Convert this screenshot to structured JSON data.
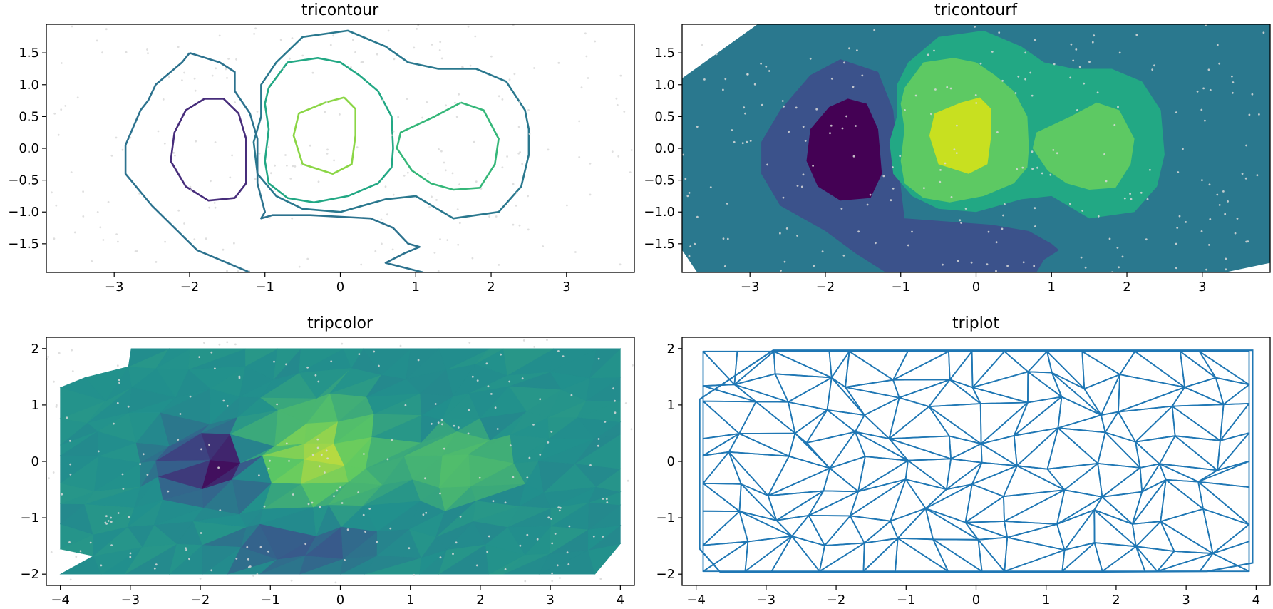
{
  "colors": {
    "mesh": "#1f77b4",
    "points": "#d9d9d9",
    "viridis": [
      "#440154",
      "#3b528b",
      "#21908d",
      "#5dc963",
      "#fde725"
    ]
  },
  "chart_data": [
    {
      "type": "tricontour",
      "title": "tricontour",
      "xlim": [
        -3.9,
        3.9
      ],
      "ylim": [
        -1.95,
        1.95
      ],
      "xticks": [
        -3,
        -2,
        -1,
        0,
        1,
        2,
        3
      ],
      "yticks": [
        -1.5,
        -1.0,
        -0.5,
        0.0,
        0.5,
        1.0,
        1.5
      ],
      "contours": [
        {
          "level_color": "#472d7b",
          "points": [
            [
              -1.8,
              0.78
            ],
            [
              -1.55,
              0.78
            ],
            [
              -1.35,
              0.55
            ],
            [
              -1.25,
              0.15
            ],
            [
              -1.25,
              -0.55
            ],
            [
              -1.4,
              -0.78
            ],
            [
              -1.75,
              -0.82
            ],
            [
              -2.05,
              -0.6
            ],
            [
              -2.25,
              -0.2
            ],
            [
              -2.2,
              0.25
            ],
            [
              -2.05,
              0.6
            ],
            [
              -1.8,
              0.78
            ]
          ]
        },
        {
          "level_color": "#8bd646",
          "points": [
            [
              0.05,
              0.8
            ],
            [
              0.2,
              0.62
            ],
            [
              0.2,
              0.2
            ],
            [
              0.15,
              -0.25
            ],
            [
              -0.1,
              -0.4
            ],
            [
              -0.5,
              -0.25
            ],
            [
              -0.62,
              0.2
            ],
            [
              -0.55,
              0.55
            ],
            [
              -0.2,
              0.72
            ],
            [
              0.05,
              0.8
            ]
          ]
        },
        {
          "level_color": "#35b779",
          "points": [
            [
              1.6,
              0.72
            ],
            [
              1.9,
              0.6
            ],
            [
              2.1,
              0.15
            ],
            [
              2.05,
              -0.25
            ],
            [
              1.85,
              -0.62
            ],
            [
              1.5,
              -0.65
            ],
            [
              1.2,
              -0.55
            ],
            [
              0.95,
              -0.35
            ],
            [
              0.75,
              0.0
            ],
            [
              0.8,
              0.25
            ],
            [
              1.25,
              0.5
            ],
            [
              1.6,
              0.72
            ]
          ]
        },
        {
          "level_color": "#22a884",
          "points": [
            [
              -0.95,
              0.95
            ],
            [
              -0.7,
              1.35
            ],
            [
              -0.3,
              1.42
            ],
            [
              0.0,
              1.35
            ],
            [
              0.25,
              1.15
            ],
            [
              0.5,
              0.9
            ],
            [
              0.68,
              0.5
            ],
            [
              0.7,
              0.0
            ],
            [
              0.68,
              -0.3
            ],
            [
              0.5,
              -0.55
            ],
            [
              0.1,
              -0.75
            ],
            [
              -0.35,
              -0.85
            ],
            [
              -0.7,
              -0.78
            ],
            [
              -0.95,
              -0.55
            ],
            [
              -1.0,
              -0.2
            ],
            [
              -0.95,
              0.3
            ],
            [
              -1.0,
              0.7
            ],
            [
              -0.95,
              0.95
            ]
          ]
        },
        {
          "level_color": "#2a788e",
          "points": [
            [
              -0.85,
              1.35
            ],
            [
              -0.5,
              1.75
            ],
            [
              0.1,
              1.85
            ],
            [
              0.6,
              1.6
            ],
            [
              0.9,
              1.35
            ],
            [
              1.3,
              1.25
            ],
            [
              1.8,
              1.25
            ],
            [
              2.2,
              1.05
            ],
            [
              2.45,
              0.6
            ],
            [
              2.5,
              0.3
            ],
            [
              2.5,
              -0.1
            ],
            [
              2.4,
              -0.6
            ],
            [
              2.1,
              -1.0
            ],
            [
              1.5,
              -1.1
            ],
            [
              1.0,
              -0.75
            ],
            [
              0.6,
              -0.8
            ],
            [
              0.0,
              -1.0
            ],
            [
              -0.5,
              -0.95
            ],
            [
              -0.85,
              -0.75
            ],
            [
              -1.1,
              -0.4
            ],
            [
              -1.15,
              0.1
            ],
            [
              -1.05,
              0.5
            ],
            [
              -1.05,
              1.0
            ],
            [
              -0.85,
              1.35
            ]
          ]
        },
        {
          "level_color": "#2c728e",
          "points": [
            [
              -2.0,
              1.5
            ],
            [
              -1.6,
              1.35
            ],
            [
              -1.4,
              1.2
            ],
            [
              -1.4,
              0.9
            ],
            [
              -1.2,
              0.55
            ],
            [
              -1.1,
              0.15
            ],
            [
              -1.1,
              -0.55
            ],
            [
              -1.0,
              -1.0
            ],
            [
              -1.05,
              -1.1
            ],
            [
              -0.9,
              -1.05
            ],
            [
              -0.4,
              -1.05
            ],
            [
              0.4,
              -1.1
            ],
            [
              0.7,
              -1.25
            ],
            [
              0.9,
              -1.5
            ],
            [
              1.05,
              -1.55
            ],
            [
              0.85,
              -1.65
            ],
            [
              0.6,
              -1.8
            ],
            [
              1.1,
              -1.95
            ]
          ]
        },
        {
          "level_color": "#2c728e",
          "points": [
            [
              -1.2,
              -1.95
            ],
            [
              -1.4,
              -1.85
            ],
            [
              -1.9,
              -1.6
            ],
            [
              -2.5,
              -0.9
            ],
            [
              -2.85,
              -0.4
            ],
            [
              -2.85,
              0.05
            ],
            [
              -2.65,
              0.6
            ],
            [
              -2.55,
              0.75
            ],
            [
              -2.45,
              1.0
            ],
            [
              -2.1,
              1.35
            ],
            [
              -2.0,
              1.5
            ]
          ]
        }
      ]
    },
    {
      "type": "tricontourf",
      "title": "tricontourf",
      "xlim": [
        -3.9,
        3.9
      ],
      "ylim": [
        -1.95,
        1.95
      ],
      "xticks": [
        -3,
        -2,
        -1,
        0,
        1,
        2,
        3
      ],
      "yticks": [
        -1.5,
        -1.0,
        -0.5,
        0.0,
        0.5,
        1.0,
        1.5
      ],
      "regions": [
        {
          "color": "#2a788e",
          "points": [
            [
              -3.9,
              1.1
            ],
            [
              -2.9,
              1.95
            ],
            [
              3.9,
              1.95
            ],
            [
              3.9,
              -1.8
            ],
            [
              3.3,
              -1.95
            ],
            [
              -3.7,
              -1.95
            ],
            [
              -3.9,
              -1.6
            ]
          ]
        },
        {
          "color": "#3b528b",
          "points": [
            [
              -2.2,
              1.15
            ],
            [
              -1.8,
              1.4
            ],
            [
              -1.3,
              1.2
            ],
            [
              -1.1,
              0.6
            ],
            [
              -1.0,
              -0.6
            ],
            [
              -0.95,
              -1.1
            ],
            [
              0.2,
              -1.2
            ],
            [
              0.7,
              -1.3
            ],
            [
              1.0,
              -1.5
            ],
            [
              1.1,
              -1.6
            ],
            [
              0.9,
              -1.75
            ],
            [
              0.8,
              -1.95
            ],
            [
              -1.2,
              -1.95
            ],
            [
              -1.6,
              -1.65
            ],
            [
              -2.0,
              -1.3
            ],
            [
              -2.6,
              -0.9
            ],
            [
              -2.85,
              -0.4
            ],
            [
              -2.85,
              0.1
            ],
            [
              -2.6,
              0.6
            ]
          ]
        },
        {
          "color": "#440154",
          "points": [
            [
              -1.7,
              0.78
            ],
            [
              -1.45,
              0.7
            ],
            [
              -1.3,
              0.3
            ],
            [
              -1.25,
              -0.4
            ],
            [
              -1.4,
              -0.78
            ],
            [
              -1.8,
              -0.82
            ],
            [
              -2.1,
              -0.6
            ],
            [
              -2.25,
              -0.2
            ],
            [
              -2.2,
              0.3
            ],
            [
              -1.95,
              0.65
            ]
          ]
        },
        {
          "color": "#22a884",
          "points": [
            [
              -0.9,
              1.35
            ],
            [
              -0.5,
              1.75
            ],
            [
              0.1,
              1.85
            ],
            [
              0.6,
              1.6
            ],
            [
              0.9,
              1.35
            ],
            [
              1.3,
              1.25
            ],
            [
              1.8,
              1.25
            ],
            [
              2.2,
              1.05
            ],
            [
              2.45,
              0.6
            ],
            [
              2.5,
              -0.1
            ],
            [
              2.4,
              -0.6
            ],
            [
              2.1,
              -1.0
            ],
            [
              1.5,
              -1.1
            ],
            [
              1.0,
              -0.75
            ],
            [
              0.6,
              -0.8
            ],
            [
              0.0,
              -1.0
            ],
            [
              -0.5,
              -0.95
            ],
            [
              -0.85,
              -0.75
            ],
            [
              -1.1,
              -0.4
            ],
            [
              -1.15,
              0.1
            ],
            [
              -1.05,
              0.5
            ],
            [
              -1.05,
              1.0
            ]
          ]
        },
        {
          "color": "#5dc963",
          "points": [
            [
              -0.95,
              0.95
            ],
            [
              -0.7,
              1.35
            ],
            [
              -0.3,
              1.42
            ],
            [
              0.0,
              1.35
            ],
            [
              0.25,
              1.15
            ],
            [
              0.5,
              0.9
            ],
            [
              0.68,
              0.5
            ],
            [
              0.7,
              0.0
            ],
            [
              0.68,
              -0.3
            ],
            [
              0.5,
              -0.55
            ],
            [
              0.1,
              -0.75
            ],
            [
              -0.35,
              -0.85
            ],
            [
              -0.7,
              -0.78
            ],
            [
              -0.95,
              -0.55
            ],
            [
              -1.0,
              -0.2
            ],
            [
              -0.95,
              0.3
            ],
            [
              -1.0,
              0.7
            ]
          ]
        },
        {
          "color": "#5dc963",
          "points": [
            [
              1.6,
              0.72
            ],
            [
              1.9,
              0.6
            ],
            [
              2.1,
              0.15
            ],
            [
              2.05,
              -0.25
            ],
            [
              1.85,
              -0.62
            ],
            [
              1.5,
              -0.65
            ],
            [
              1.2,
              -0.55
            ],
            [
              0.95,
              -0.35
            ],
            [
              0.75,
              0.0
            ],
            [
              0.8,
              0.25
            ],
            [
              1.25,
              0.5
            ]
          ]
        },
        {
          "color": "#c8e020",
          "points": [
            [
              0.05,
              0.8
            ],
            [
              0.2,
              0.62
            ],
            [
              0.2,
              0.2
            ],
            [
              0.15,
              -0.25
            ],
            [
              -0.1,
              -0.4
            ],
            [
              -0.5,
              -0.25
            ],
            [
              -0.62,
              0.2
            ],
            [
              -0.55,
              0.55
            ],
            [
              -0.2,
              0.72
            ]
          ]
        }
      ]
    },
    {
      "type": "tripcolor",
      "title": "tripcolor",
      "xlim": [
        -4.2,
        4.2
      ],
      "ylim": [
        -2.2,
        2.2
      ],
      "xticks": [
        -4,
        -3,
        -2,
        -1,
        0,
        1,
        2,
        3,
        4
      ],
      "yticks": [
        -2,
        -1,
        0,
        1,
        2
      ],
      "hull": [
        [
          -3.95,
          1.1
        ],
        [
          -2.9,
          1.97
        ],
        [
          3.95,
          1.97
        ],
        [
          3.95,
          -1.8
        ],
        [
          3.3,
          -1.95
        ],
        [
          -3.65,
          -1.97
        ],
        [
          -3.95,
          -1.55
        ]
      ],
      "blobs": [
        {
          "center": [
            -1.9,
            -0.05
          ],
          "rx": 1.05,
          "ry": 0.95,
          "value": 0.25
        },
        {
          "center": [
            -1.8,
            0.0
          ],
          "rx": 0.55,
          "ry": 0.55,
          "value": 0.05
        },
        {
          "center": [
            -0.2,
            0.2
          ],
          "rx": 1.3,
          "ry": 1.25,
          "value": 0.75
        },
        {
          "center": [
            -0.3,
            0.05
          ],
          "rx": 0.65,
          "ry": 0.6,
          "value": 0.88
        },
        {
          "center": [
            1.7,
            -0.1
          ],
          "rx": 0.9,
          "ry": 0.8,
          "value": 0.72
        },
        {
          "center": [
            -0.5,
            -1.55
          ],
          "rx": 1.6,
          "ry": 0.5,
          "value": 0.3
        }
      ]
    },
    {
      "type": "triplot",
      "title": "triplot",
      "xlim": [
        -4.2,
        4.2
      ],
      "ylim": [
        -2.2,
        2.2
      ],
      "xticks": [
        -4,
        -3,
        -2,
        -1,
        0,
        1,
        2,
        3,
        4
      ],
      "yticks": [
        -2,
        -1,
        0,
        1,
        2
      ],
      "hull": [
        [
          -3.95,
          1.1
        ],
        [
          -2.9,
          1.97
        ],
        [
          3.95,
          1.97
        ],
        [
          3.95,
          0.75
        ],
        [
          3.95,
          -1.8
        ],
        [
          3.3,
          -1.95
        ],
        [
          0.0,
          -1.97
        ],
        [
          -3.65,
          -1.97
        ],
        [
          -3.95,
          -1.55
        ]
      ]
    }
  ]
}
